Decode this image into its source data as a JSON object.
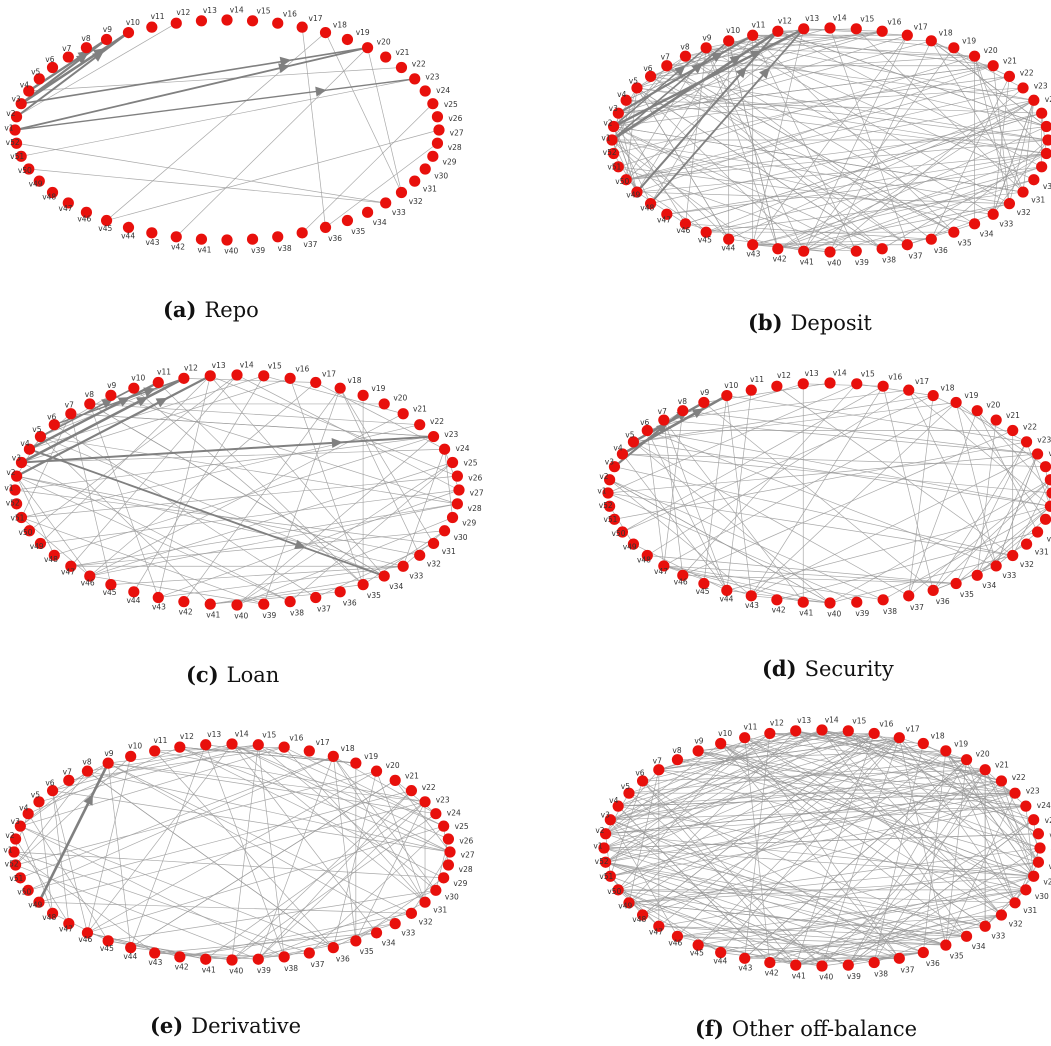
{
  "colors": {
    "node": "#e8100c",
    "edge": "#9a9a9a",
    "edge_heavy": "#808080",
    "label": "#333333"
  },
  "node_labels": [
    "v1",
    "v2",
    "v3",
    "v4",
    "v5",
    "v6",
    "v7",
    "v8",
    "v9",
    "v10",
    "v11",
    "v12",
    "v13",
    "v14",
    "v15",
    "v16",
    "v17",
    "v18",
    "v19",
    "v20",
    "v21",
    "v22",
    "v23",
    "v24",
    "v25",
    "v26",
    "v27",
    "v28",
    "v29",
    "v30",
    "v31",
    "v32",
    "v33",
    "v34",
    "v35",
    "v36",
    "v37",
    "v38",
    "v39",
    "v40",
    "v41",
    "v42",
    "v43",
    "v44",
    "v45",
    "v46",
    "v47",
    "v48",
    "v49",
    "v50",
    "v51",
    "v52"
  ],
  "panels": [
    {
      "id": "a",
      "tag": "(a)",
      "caption": "Repo",
      "edge_count": 14,
      "heavy": [
        [
          3,
          10
        ],
        [
          4,
          9
        ],
        [
          3,
          9
        ],
        [
          2,
          10
        ],
        [
          1,
          20
        ],
        [
          3,
          20
        ],
        [
          1,
          23
        ]
      ]
    },
    {
      "id": "b",
      "tag": "(b)",
      "caption": "Deposit",
      "edge_count": 190,
      "heavy": [
        [
          1,
          12
        ],
        [
          2,
          13
        ],
        [
          3,
          11
        ],
        [
          49,
          12
        ],
        [
          48,
          13
        ],
        [
          1,
          10
        ],
        [
          2,
          9
        ]
      ]
    },
    {
      "id": "c",
      "tag": "(c)",
      "caption": "Loan",
      "edge_count": 90,
      "heavy": [
        [
          3,
          12
        ],
        [
          4,
          11
        ],
        [
          2,
          13
        ],
        [
          3,
          23
        ],
        [
          4,
          34
        ],
        [
          5,
          10
        ],
        [
          6,
          12
        ]
      ]
    },
    {
      "id": "d",
      "tag": "(d)",
      "caption": "Security",
      "edge_count": 110,
      "heavy": [
        [
          4,
          10
        ],
        [
          5,
          9
        ],
        [
          3,
          8
        ]
      ]
    },
    {
      "id": "e",
      "tag": "(e)",
      "caption": "Derivative",
      "edge_count": 120,
      "heavy": [
        [
          49,
          9
        ]
      ]
    },
    {
      "id": "f",
      "tag": "(f)",
      "caption": "Other off-balance",
      "edge_count": 240,
      "heavy": []
    }
  ]
}
